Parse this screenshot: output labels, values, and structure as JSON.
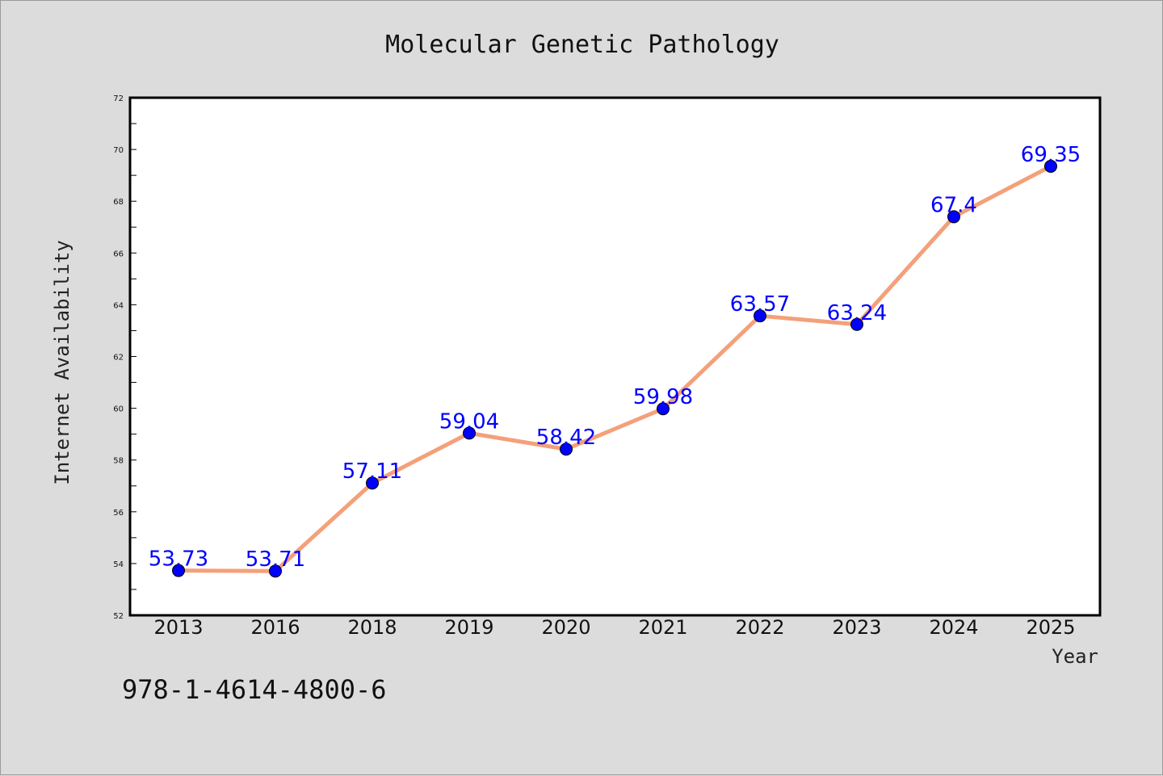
{
  "chart_data": {
    "type": "line",
    "title": "Molecular Genetic Pathology",
    "xlabel": "Year",
    "ylabel": "Internet Availability",
    "categories": [
      "2013",
      "2016",
      "2018",
      "2019",
      "2020",
      "2021",
      "2022",
      "2023",
      "2024",
      "2025"
    ],
    "series": [
      {
        "values": [
          53.73,
          53.71,
          57.11,
          59.04,
          58.42,
          59.98,
          63.57,
          63.24,
          67.4,
          69.35
        ],
        "labels": [
          "53.73",
          "53.71",
          "57.11",
          "59.04",
          "58.42",
          "59.98",
          "63.57",
          "63.24",
          "67.4",
          "69.35"
        ],
        "line_color": "#f4a07a",
        "marker_color": "#0000ff"
      }
    ],
    "ylim": [
      52,
      72
    ],
    "yticks": [
      "52",
      "54",
      "56",
      "58",
      "60",
      "62",
      "64",
      "66",
      "68",
      "70",
      "72"
    ],
    "grid": false,
    "legend": "none"
  },
  "footer": {
    "code": "978-1-4614-4800-6"
  }
}
